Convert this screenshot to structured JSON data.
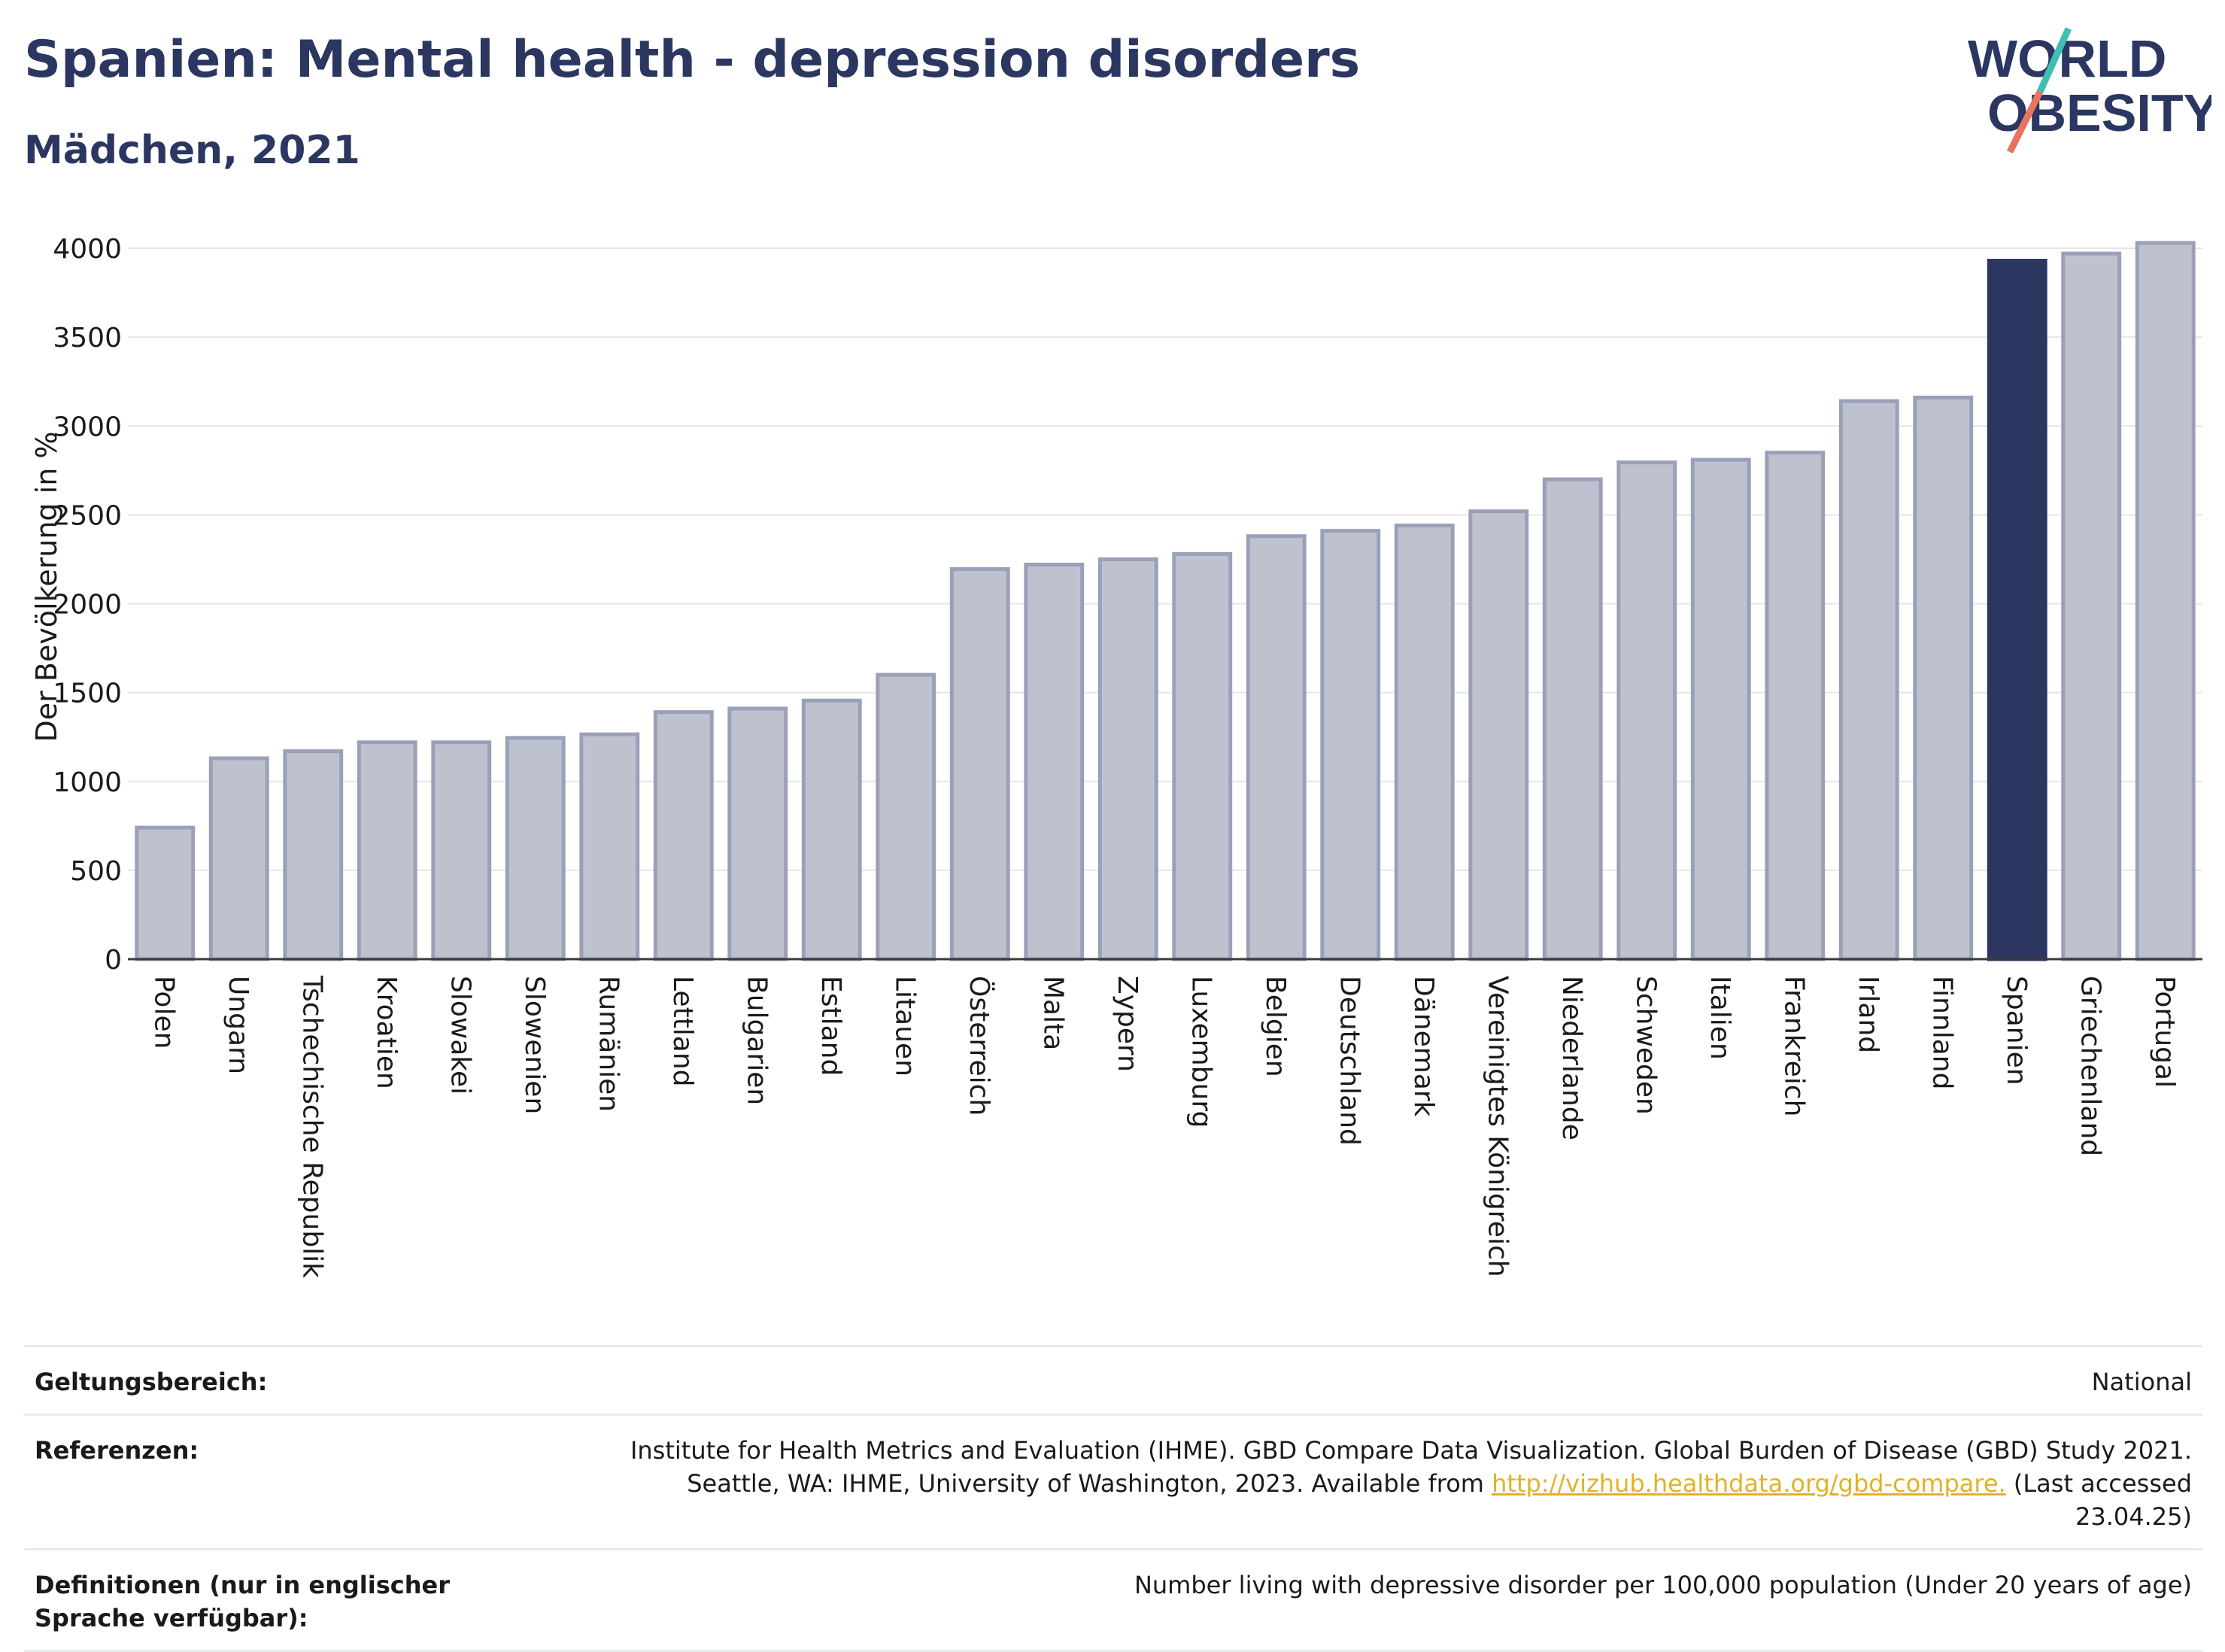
{
  "header": {
    "title": "Spanien: Mental health - depression disorders",
    "subtitle": "Mädchen, 2021"
  },
  "logo": {
    "line1": "WORLD",
    "line2": "OBESITY"
  },
  "colors": {
    "highlight": "#2b3661",
    "bar_fill": "#bec2cf",
    "bar_stroke": "#9aa0b8",
    "accent_teal": "#3fbfb3",
    "accent_coral": "#e8735f",
    "link": "#e0b324"
  },
  "chart_data": {
    "type": "bar",
    "title": "Spanien: Mental health - depression disorders",
    "subtitle": "Mädchen, 2021",
    "ylabel": "Der Bevölkerung in %",
    "xlabel": "",
    "ylim": [
      0,
      4000
    ],
    "yticks": [
      0,
      500,
      1000,
      1500,
      2000,
      2500,
      3000,
      3500,
      4000
    ],
    "grid": true,
    "highlight": "Spanien",
    "categories": [
      "Polen",
      "Ungarn",
      "Tschechische Republik",
      "Kroatien",
      "Slowakei",
      "Slowenien",
      "Rumänien",
      "Lettland",
      "Bulgarien",
      "Estland",
      "Litauen",
      "Österreich",
      "Malta",
      "Zypern",
      "Luxemburg",
      "Belgien",
      "Deutschland",
      "Dänemark",
      "Vereinigtes Königreich",
      "Niederlande",
      "Schweden",
      "Italien",
      "Frankreich",
      "Irland",
      "Finnland",
      "Spanien",
      "Griechenland",
      "Portugal"
    ],
    "values": [
      740,
      1130,
      1170,
      1220,
      1220,
      1245,
      1265,
      1390,
      1410,
      1455,
      1600,
      2195,
      2220,
      2250,
      2280,
      2380,
      2410,
      2440,
      2520,
      2700,
      2795,
      2810,
      2850,
      3140,
      3160,
      3930,
      3970,
      4030
    ]
  },
  "meta": {
    "scope_label": "Geltungsbereich:",
    "scope_value": "National",
    "refs_label": "Referenzen:",
    "refs_line1": "Institute for Health Metrics and Evaluation (IHME). GBD Compare Data Visualization. Global Burden of Disease (GBD) Study 2021.",
    "refs_line2_pre": "Seattle, WA: IHME, University of Washington, 2023. Available from ",
    "refs_link": "http://vizhub.healthdata.org/gbd-compare.",
    "refs_line2_post": " (Last accessed 23.04.25)",
    "defs_label": "Definitionen (nur in englischer Sprache verfügbar):",
    "defs_value": "Number living with depressive disorder per 100,000 population (Under 20 years of age)"
  }
}
